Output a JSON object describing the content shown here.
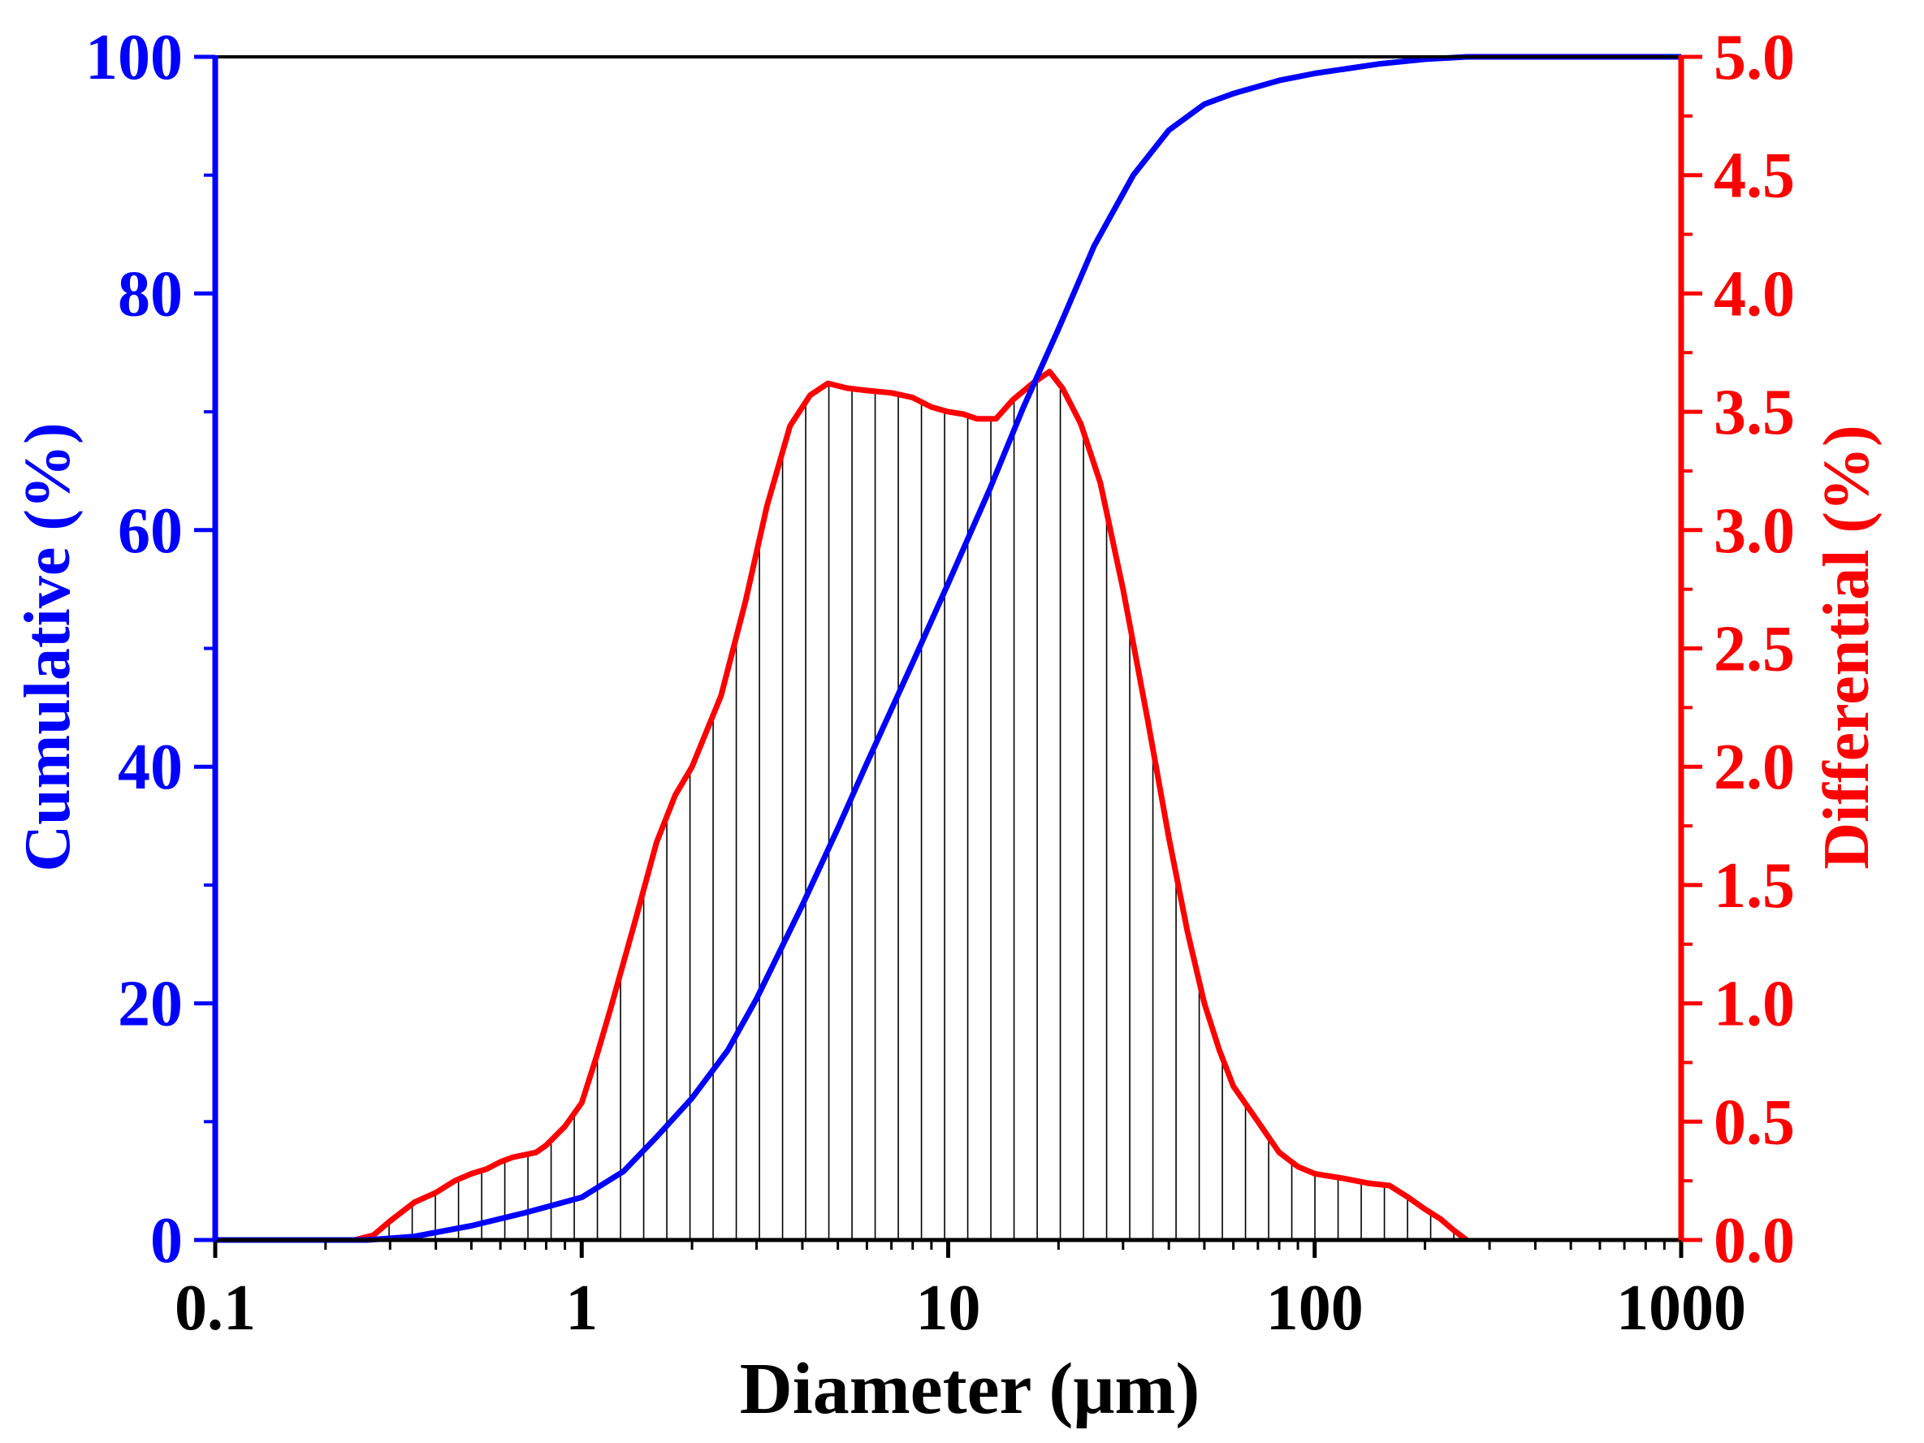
{
  "chart_data": {
    "type": "line",
    "title": "",
    "xlabel": "Diameter (μm)",
    "ylabel_left": "Cumulative (%)",
    "ylabel_right": "Differential (%)",
    "xscale": "log",
    "xlim": [
      0.1,
      1000
    ],
    "ylim_left": [
      0,
      100
    ],
    "ylim_right": [
      0,
      5.0
    ],
    "x_ticks": [
      "0.1",
      "1",
      "10",
      "100",
      "1000"
    ],
    "y_left_ticks": [
      "0",
      "20",
      "40",
      "60",
      "80",
      "100"
    ],
    "y_right_ticks": [
      "0.0",
      "0.5",
      "1.0",
      "1.5",
      "2.0",
      "2.5",
      "3.0",
      "3.5",
      "4.0",
      "4.5",
      "5.0"
    ],
    "grid": false,
    "legend": "none",
    "colors": {
      "cumulative": "#0000ff",
      "differential": "#ff0000",
      "hatch": "#000000",
      "frame": "#000000"
    },
    "series": [
      {
        "name": "Cumulative",
        "axis": "left",
        "color": "#0000ff",
        "x": [
          0.26,
          0.35,
          0.5,
          0.7,
          1.0,
          1.3,
          1.6,
          2.0,
          2.5,
          3.0,
          4.0,
          5.0,
          6.0,
          8.0,
          10.0,
          13.0,
          16.0,
          20.0,
          25.0,
          32.0,
          40.0,
          50.0,
          60.0,
          80.0,
          100.0,
          150.0,
          200.0,
          260.0,
          1000.0
        ],
        "values": [
          0.0,
          0.3,
          1.2,
          2.3,
          3.6,
          5.8,
          8.7,
          12.0,
          16.0,
          20.4,
          28.3,
          34.8,
          40.3,
          48.8,
          55.5,
          63.5,
          70.3,
          77.0,
          84.0,
          90.0,
          93.8,
          96.0,
          96.9,
          98.0,
          98.6,
          99.4,
          99.8,
          100.0,
          100.0
        ]
      },
      {
        "name": "Differential",
        "axis": "right",
        "color": "#ff0000",
        "x": [
          0.24,
          0.27,
          0.3,
          0.35,
          0.4,
          0.45,
          0.5,
          0.55,
          0.6,
          0.65,
          0.7,
          0.75,
          0.8,
          0.9,
          1.0,
          1.1,
          1.2,
          1.4,
          1.6,
          1.8,
          2.0,
          2.4,
          2.8,
          3.2,
          3.7,
          4.2,
          4.7,
          5.3,
          6.0,
          7.0,
          8.0,
          9.0,
          10.0,
          11.0,
          12.0,
          13.5,
          15.0,
          17.0,
          18.9,
          20.5,
          23.0,
          26.0,
          30.0,
          35.0,
          40.0,
          45.0,
          50.0,
          55.0,
          60.0,
          70.0,
          80.0,
          90.0,
          100.0,
          120.0,
          140.0,
          160.0,
          180.0,
          200.0,
          220.0,
          240.0,
          260.0
        ],
        "values": [
          0.0,
          0.02,
          0.08,
          0.16,
          0.2,
          0.25,
          0.28,
          0.3,
          0.33,
          0.35,
          0.36,
          0.37,
          0.4,
          0.48,
          0.58,
          0.78,
          0.98,
          1.35,
          1.68,
          1.88,
          2.0,
          2.3,
          2.7,
          3.1,
          3.44,
          3.57,
          3.62,
          3.6,
          3.59,
          3.58,
          3.56,
          3.52,
          3.5,
          3.49,
          3.47,
          3.47,
          3.55,
          3.62,
          3.67,
          3.6,
          3.45,
          3.2,
          2.75,
          2.2,
          1.7,
          1.3,
          1.0,
          0.8,
          0.65,
          0.5,
          0.37,
          0.31,
          0.28,
          0.26,
          0.24,
          0.23,
          0.18,
          0.13,
          0.09,
          0.04,
          0.0
        ]
      }
    ]
  }
}
